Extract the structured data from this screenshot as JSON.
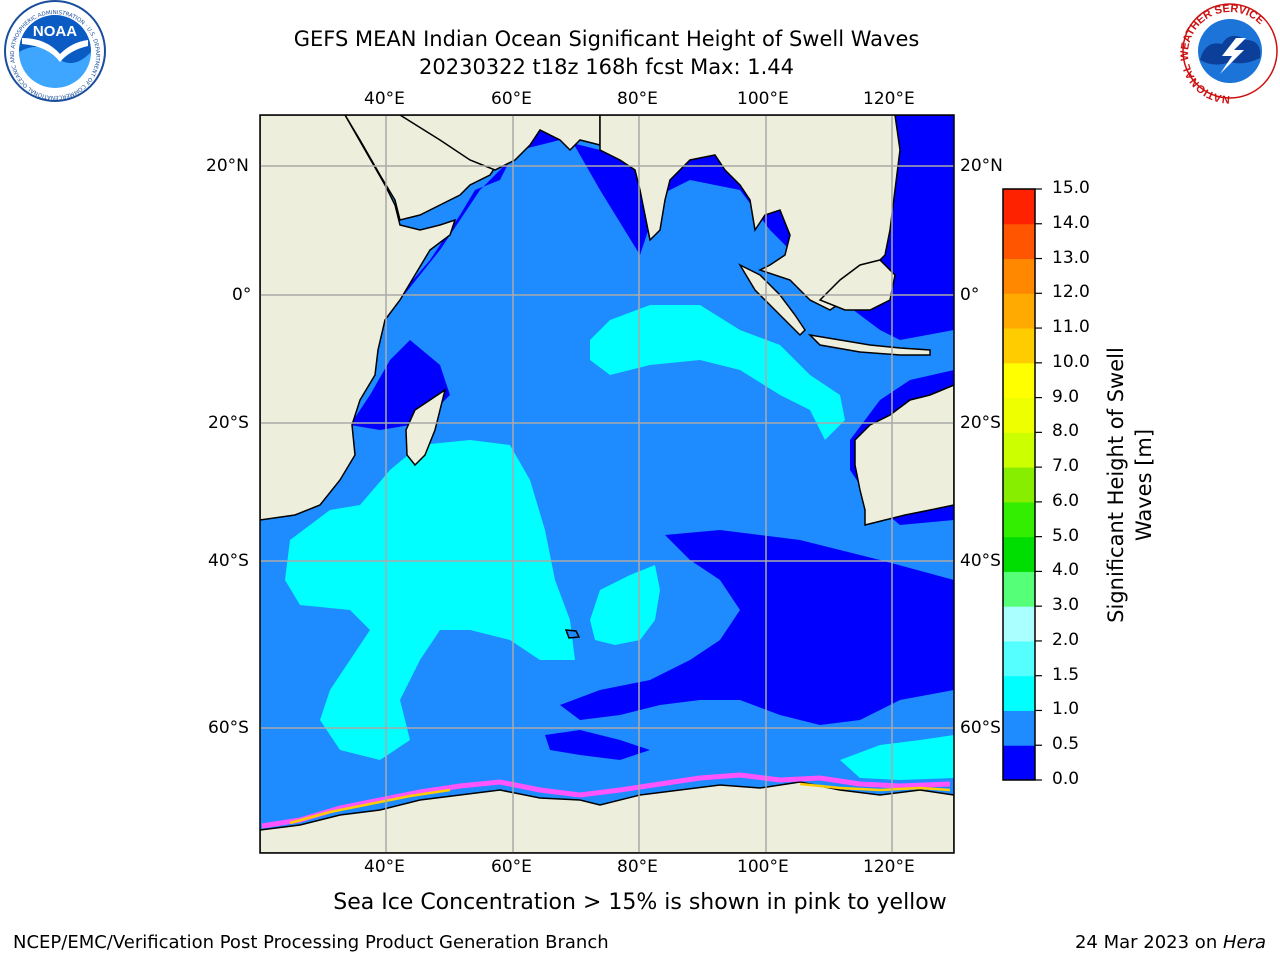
{
  "title": {
    "line1": "GEFS MEAN Indian Ocean Significant Height of Swell Waves",
    "line2": "20230322 t18z 168h fcst   Max: 1.44"
  },
  "caption": "Sea Ice Concentration > 15% is shown in pink to yellow",
  "footer": {
    "left": "NCEP/EMC/Verification Post Processing Product Generation Branch",
    "right_date": "24 Mar 2023 on ",
    "right_host": "Hera"
  },
  "logos": {
    "left": "noaa-logo",
    "left_text": "NOAA",
    "left_ring_text": "NATIONAL OCEANIC AND ATMOSPHERIC ADMINISTRATION · U.S. DEPARTMENT OF COMMERCE",
    "right": "nws-logo",
    "right_ring_text": "NATIONAL WEATHER SERVICE"
  },
  "map": {
    "lon_ticks": [
      "40°E",
      "60°E",
      "80°E",
      "100°E",
      "120°E"
    ],
    "lat_ticks": [
      "20°N",
      "0°",
      "20°S",
      "40°S",
      "60°S"
    ],
    "colors": {
      "land": "#eeeedd",
      "ocean_low": "#0000ff",
      "ocean_mid": "#1e8cff",
      "ocean_high": "#00ffff",
      "sea_ice": "#ff55ff"
    }
  },
  "colorbar": {
    "label": "Significant Height of Swell Waves [m]",
    "ticks": [
      "15.0",
      "14.0",
      "13.0",
      "12.0",
      "11.0",
      "10.0",
      "9.0",
      "8.0",
      "7.0",
      "6.0",
      "5.0",
      "4.0",
      "3.0",
      "2.0",
      "1.5",
      "1.0",
      "0.5",
      "0.0"
    ],
    "colors": [
      "#0000ff",
      "#1e8cff",
      "#00ffff",
      "#55ffff",
      "#aaffff",
      "#55ff77",
      "#00dd00",
      "#33ee00",
      "#88ee00",
      "#ccff00",
      "#eeff00",
      "#ffff00",
      "#ffcc00",
      "#ffaa00",
      "#ff8800",
      "#ff5500",
      "#ff2200",
      "#ff0000"
    ]
  }
}
